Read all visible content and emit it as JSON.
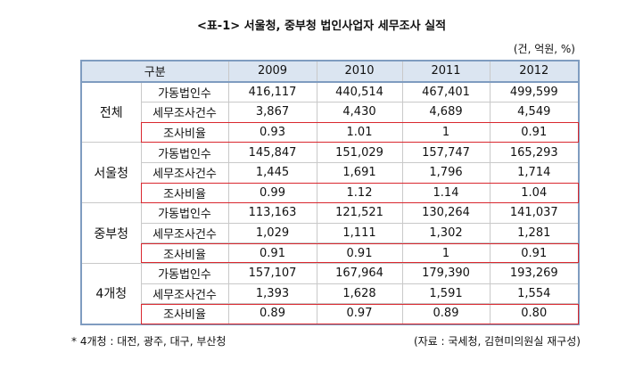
{
  "header": {
    "title": "<표-1> 서울청, 중부청 법인사업자 세무조사 실적",
    "unit": "(건, 억원, %)"
  },
  "table": {
    "columns": [
      "구분",
      "2009",
      "2010",
      "2011",
      "2012"
    ],
    "groups": [
      {
        "name": "전체",
        "rows": [
          {
            "label": "가동법인수",
            "values": [
              "416,117",
              "440,514",
              "467,401",
              "499,599"
            ]
          },
          {
            "label": "세무조사건수",
            "values": [
              "3,867",
              "4,430",
              "4,689",
              "4,549"
            ]
          },
          {
            "label": "조사비율",
            "values": [
              "0.93",
              "1.01",
              "1",
              "0.91"
            ]
          }
        ]
      },
      {
        "name": "서울청",
        "rows": [
          {
            "label": "가동법인수",
            "values": [
              "145,847",
              "151,029",
              "157,747",
              "165,293"
            ]
          },
          {
            "label": "세무조사건수",
            "values": [
              "1,445",
              "1,691",
              "1,796",
              "1,714"
            ]
          },
          {
            "label": "조사비율",
            "values": [
              "0.99",
              "1.12",
              "1.14",
              "1.04"
            ]
          }
        ]
      },
      {
        "name": "중부청",
        "rows": [
          {
            "label": "가동법인수",
            "values": [
              "113,163",
              "121,521",
              "130,264",
              "141,037"
            ]
          },
          {
            "label": "세무조사건수",
            "values": [
              "1,029",
              "1,111",
              "1,302",
              "1,281"
            ]
          },
          {
            "label": "조사비율",
            "values": [
              "0.91",
              "0.91",
              "1",
              "0.91"
            ]
          }
        ]
      },
      {
        "name": "4개청",
        "rows": [
          {
            "label": "가동법인수",
            "values": [
              "157,107",
              "167,964",
              "179,390",
              "193,269"
            ]
          },
          {
            "label": "세무조사건수",
            "values": [
              "1,393",
              "1,628",
              "1,591",
              "1,554"
            ]
          },
          {
            "label": "조사비율",
            "values": [
              "0.89",
              "0.97",
              "0.89",
              "0.80"
            ]
          }
        ]
      }
    ]
  },
  "footnote": "* 4개청 : 대전, 광주, 대구, 부산청",
  "source": "(자료 : 국세청, 김현미의원실 재구성)"
}
